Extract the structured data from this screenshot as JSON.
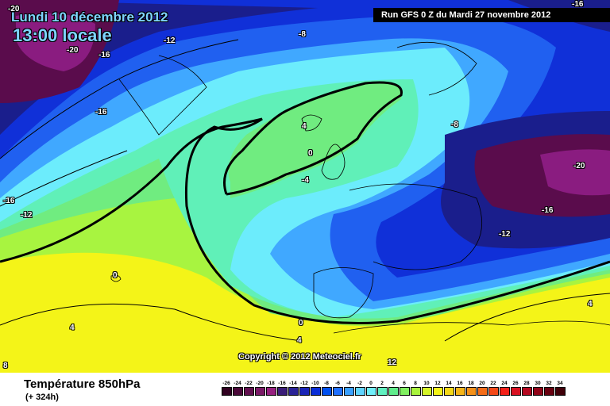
{
  "header": {
    "date": "Lundi 10 décembre 2012",
    "time": "13:00 locale",
    "run": "Run GFS 0 Z du Mardi 27 novembre 2012",
    "copyright": "Copyright © 2012 Meteociel.fr"
  },
  "legend": {
    "title": "Température 850hPa",
    "subtitle": "(+ 324h)",
    "scale": [
      {
        "label": "-26",
        "color": "#300020"
      },
      {
        "label": "-24",
        "color": "#4a0838"
      },
      {
        "label": "-22",
        "color": "#62104f"
      },
      {
        "label": "-20",
        "color": "#7a1a66"
      },
      {
        "label": "-18",
        "color": "#96207f"
      },
      {
        "label": "-16",
        "color": "#3a1c78"
      },
      {
        "label": "-14",
        "color": "#2a2296"
      },
      {
        "label": "-12",
        "color": "#1a24b8"
      },
      {
        "label": "-10",
        "color": "#0a2ed8"
      },
      {
        "label": "-8",
        "color": "#0050f0"
      },
      {
        "label": "-6",
        "color": "#2070ff"
      },
      {
        "label": "-4",
        "color": "#3aa0ff"
      },
      {
        "label": "-2",
        "color": "#60d4ff"
      },
      {
        "label": "0",
        "color": "#70eefa"
      },
      {
        "label": "2",
        "color": "#60f0c0"
      },
      {
        "label": "4",
        "color": "#60ec8c"
      },
      {
        "label": "6",
        "color": "#80f060"
      },
      {
        "label": "8",
        "color": "#a8f43c"
      },
      {
        "label": "10",
        "color": "#d4f428"
      },
      {
        "label": "12",
        "color": "#f4f418"
      },
      {
        "label": "14",
        "color": "#f4d818"
      },
      {
        "label": "16",
        "color": "#f4b418"
      },
      {
        "label": "18",
        "color": "#f49018"
      },
      {
        "label": "20",
        "color": "#f46c18"
      },
      {
        "label": "22",
        "color": "#f44818"
      },
      {
        "label": "24",
        "color": "#f42018"
      },
      {
        "label": "26",
        "color": "#d81020"
      },
      {
        "label": "28",
        "color": "#b40820"
      },
      {
        "label": "30",
        "color": "#900418"
      },
      {
        "label": "32",
        "color": "#680010"
      },
      {
        "label": "34",
        "color": "#400008"
      }
    ]
  },
  "map_labels": [
    {
      "text": "-20"
    },
    {
      "text": "-20"
    },
    {
      "text": "-16"
    },
    {
      "text": "-12"
    },
    {
      "text": "-8"
    },
    {
      "text": "-16"
    },
    {
      "text": "-16"
    },
    {
      "text": "-16"
    },
    {
      "text": "-12"
    },
    {
      "text": "4"
    },
    {
      "text": "0"
    },
    {
      "text": "-4"
    },
    {
      "text": "-8"
    },
    {
      "text": "-20"
    },
    {
      "text": "-16"
    },
    {
      "text": "-12"
    },
    {
      "text": "0"
    },
    {
      "text": "4"
    },
    {
      "text": "0"
    },
    {
      "text": "4"
    },
    {
      "text": "4"
    },
    {
      "text": "8"
    },
    {
      "text": "12"
    }
  ],
  "colors": {
    "deep_purple": "#5a0c4c",
    "purple": "#8a1c80",
    "navy": "#1a1e8c",
    "blue": "#1030d8",
    "mid_blue": "#2060f0",
    "light_blue": "#40a8ff",
    "cyan": "#6cecfc",
    "aqua_green": "#60f0b8",
    "green": "#70ec80",
    "light_green": "#a8f440",
    "yellow": "#f4f418"
  }
}
